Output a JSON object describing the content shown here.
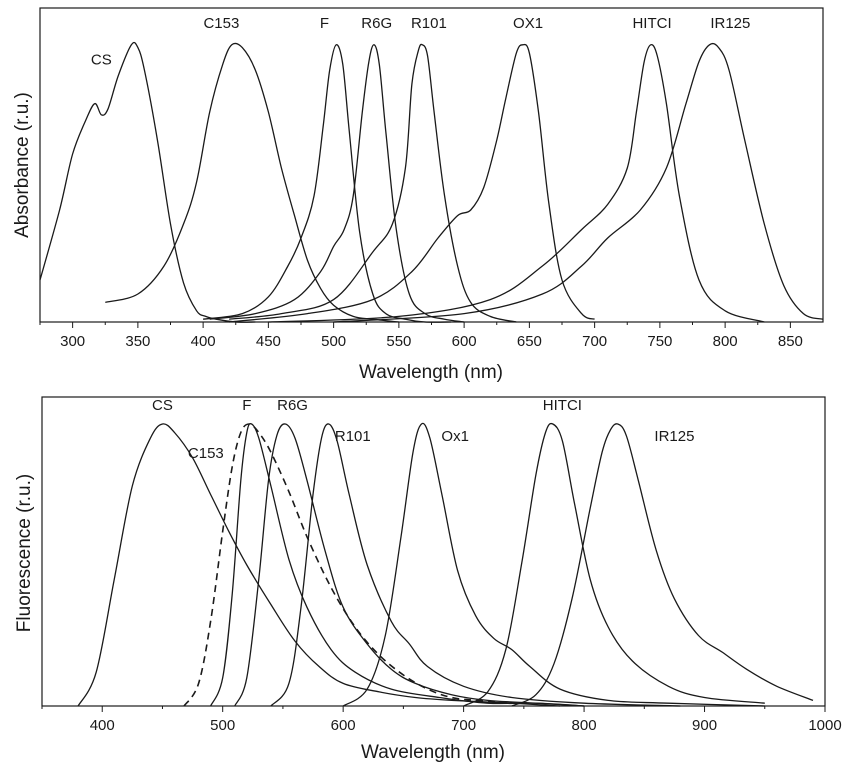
{
  "chart_data": [
    {
      "type": "line",
      "title": "",
      "xlabel": "Wavelength (nm)",
      "ylabel": "Absorbance (r.u.)",
      "xlim": [
        275,
        875
      ],
      "ylim": [
        0,
        1.0
      ],
      "xticks": [
        300,
        350,
        400,
        450,
        500,
        550,
        600,
        650,
        700,
        750,
        800,
        850
      ],
      "grid": false,
      "legend": "none",
      "series": [
        {
          "name": "CS",
          "x": [
            275,
            290,
            300,
            310,
            317,
            322,
            327,
            335,
            345,
            350,
            355,
            365,
            375,
            385,
            395,
            402,
            410,
            425,
            440
          ],
          "y": [
            0.15,
            0.4,
            0.6,
            0.72,
            0.78,
            0.74,
            0.76,
            0.88,
            0.99,
            0.98,
            0.9,
            0.65,
            0.35,
            0.14,
            0.04,
            0.02,
            0.01,
            0.0,
            0.0
          ]
        },
        {
          "name": "C153",
          "x": [
            325,
            350,
            370,
            385,
            395,
            405,
            415,
            422,
            430,
            440,
            450,
            460,
            470,
            480,
            490,
            500,
            515,
            530,
            550
          ],
          "y": [
            0.07,
            0.1,
            0.2,
            0.35,
            0.5,
            0.75,
            0.92,
            0.99,
            0.98,
            0.9,
            0.75,
            0.55,
            0.38,
            0.22,
            0.12,
            0.06,
            0.02,
            0.01,
            0.0
          ]
        },
        {
          "name": "F",
          "x": [
            400,
            430,
            450,
            465,
            475,
            485,
            492,
            497,
            502,
            507,
            512,
            520,
            530,
            540,
            555,
            570,
            590
          ],
          "y": [
            0.01,
            0.03,
            0.09,
            0.2,
            0.3,
            0.45,
            0.7,
            0.9,
            0.99,
            0.92,
            0.68,
            0.32,
            0.1,
            0.03,
            0.01,
            0.0,
            0.0
          ]
        },
        {
          "name": "R6G",
          "x": [
            405,
            440,
            470,
            490,
            500,
            508,
            515,
            522,
            527,
            531,
            535,
            540,
            548,
            558,
            570,
            585,
            600
          ],
          "y": [
            0.01,
            0.03,
            0.08,
            0.18,
            0.27,
            0.33,
            0.45,
            0.75,
            0.93,
            0.99,
            0.92,
            0.68,
            0.33,
            0.1,
            0.03,
            0.01,
            0.0
          ]
        },
        {
          "name": "R101",
          "x": [
            420,
            460,
            500,
            530,
            545,
            555,
            560,
            565,
            568,
            572,
            577,
            585,
            595,
            605,
            620,
            640
          ],
          "y": [
            0.01,
            0.03,
            0.08,
            0.25,
            0.35,
            0.55,
            0.85,
            0.97,
            0.99,
            0.95,
            0.75,
            0.45,
            0.2,
            0.07,
            0.02,
            0.0
          ]
        },
        {
          "name": "OX1",
          "x": [
            420,
            480,
            530,
            560,
            580,
            595,
            605,
            615,
            625,
            632,
            640,
            645,
            650,
            657,
            665,
            675,
            690,
            700
          ],
          "y": [
            0.0,
            0.03,
            0.08,
            0.18,
            0.3,
            0.38,
            0.4,
            0.48,
            0.65,
            0.8,
            0.96,
            0.99,
            0.96,
            0.75,
            0.42,
            0.15,
            0.03,
            0.01
          ]
        },
        {
          "name": "HITCI",
          "x": [
            450,
            550,
            620,
            660,
            690,
            710,
            725,
            732,
            738,
            743,
            748,
            755,
            765,
            780,
            800,
            830
          ],
          "y": [
            0.0,
            0.02,
            0.08,
            0.2,
            0.33,
            0.42,
            0.55,
            0.75,
            0.93,
            0.99,
            0.95,
            0.78,
            0.45,
            0.15,
            0.04,
            0.0
          ]
        },
        {
          "name": "IR125",
          "x": [
            500,
            600,
            660,
            690,
            710,
            735,
            755,
            770,
            780,
            788,
            795,
            803,
            815,
            830,
            845,
            860,
            875
          ],
          "y": [
            0.0,
            0.03,
            0.1,
            0.2,
            0.3,
            0.4,
            0.55,
            0.78,
            0.93,
            0.99,
            0.98,
            0.9,
            0.65,
            0.35,
            0.13,
            0.03,
            0.01
          ]
        }
      ],
      "annotations": [
        {
          "text": "CS",
          "x": 322,
          "y": 0.92
        },
        {
          "text": "C153",
          "x": 414,
          "y": 1.05
        },
        {
          "text": "F",
          "x": 493,
          "y": 1.05
        },
        {
          "text": "R6G",
          "x": 533,
          "y": 1.05
        },
        {
          "text": "R101",
          "x": 573,
          "y": 1.05
        },
        {
          "text": "OX1",
          "x": 649,
          "y": 1.05
        },
        {
          "text": "HITCI",
          "x": 744,
          "y": 1.05
        },
        {
          "text": "IR125",
          "x": 804,
          "y": 1.05
        }
      ]
    },
    {
      "type": "line",
      "title": "",
      "xlabel": "Wavelength (nm)",
      "ylabel": "Fluorescence (r.u.)",
      "xlim": [
        350,
        1000
      ],
      "ylim": [
        0,
        1.0
      ],
      "xticks": [
        400,
        500,
        600,
        700,
        800,
        900,
        1000
      ],
      "grid": false,
      "legend": "none",
      "series": [
        {
          "name": "CS",
          "x": [
            380,
            395,
            410,
            425,
            440,
            450,
            460,
            475,
            490,
            505,
            520,
            540,
            560,
            580,
            600,
            630,
            660,
            690,
            740,
            780
          ],
          "y": [
            0.0,
            0.12,
            0.45,
            0.78,
            0.95,
            1.0,
            0.97,
            0.88,
            0.75,
            0.62,
            0.5,
            0.36,
            0.23,
            0.14,
            0.08,
            0.05,
            0.03,
            0.02,
            0.01,
            0.0
          ]
        },
        {
          "name": "C153",
          "dashed": true,
          "x": [
            468,
            480,
            490,
            500,
            508,
            515,
            522,
            530,
            540,
            555,
            570,
            590,
            610,
            630,
            650,
            670,
            690,
            710,
            740
          ],
          "y": [
            0.0,
            0.08,
            0.3,
            0.62,
            0.85,
            0.97,
            1.0,
            0.97,
            0.9,
            0.76,
            0.6,
            0.42,
            0.28,
            0.18,
            0.11,
            0.06,
            0.03,
            0.02,
            0.01
          ]
        },
        {
          "name": "F",
          "x": [
            490,
            500,
            508,
            515,
            520,
            524,
            530,
            540,
            555,
            570,
            590,
            610,
            640,
            680,
            720,
            760,
            800
          ],
          "y": [
            0.0,
            0.1,
            0.4,
            0.8,
            0.97,
            1.0,
            0.95,
            0.78,
            0.52,
            0.35,
            0.2,
            0.12,
            0.06,
            0.03,
            0.01,
            0.01,
            0.0
          ]
        },
        {
          "name": "R6G",
          "x": [
            510,
            520,
            530,
            538,
            545,
            552,
            560,
            570,
            585,
            600,
            620,
            640,
            660,
            690,
            720,
            760,
            800
          ],
          "y": [
            0.0,
            0.1,
            0.45,
            0.8,
            0.96,
            1.0,
            0.95,
            0.8,
            0.55,
            0.35,
            0.22,
            0.13,
            0.08,
            0.04,
            0.02,
            0.01,
            0.0
          ]
        },
        {
          "name": "R101",
          "x": [
            540,
            555,
            565,
            575,
            582,
            588,
            595,
            605,
            620,
            640,
            655,
            670,
            700,
            740,
            800,
            880
          ],
          "y": [
            0.0,
            0.08,
            0.35,
            0.75,
            0.95,
            1.0,
            0.94,
            0.75,
            0.5,
            0.3,
            0.22,
            0.14,
            0.07,
            0.03,
            0.01,
            0.0
          ]
        },
        {
          "name": "Ox1",
          "x": [
            600,
            620,
            635,
            648,
            658,
            665,
            672,
            682,
            695,
            710,
            725,
            740,
            755,
            780,
            820,
            870,
            950
          ],
          "y": [
            0.0,
            0.06,
            0.25,
            0.6,
            0.9,
            1.0,
            0.95,
            0.75,
            0.48,
            0.32,
            0.24,
            0.2,
            0.14,
            0.06,
            0.02,
            0.01,
            0.0
          ]
        },
        {
          "name": "HITCI",
          "x": [
            700,
            720,
            735,
            748,
            760,
            768,
            774,
            782,
            792,
            805,
            820,
            840,
            870,
            900,
            950
          ],
          "y": [
            0.0,
            0.05,
            0.2,
            0.5,
            0.82,
            0.97,
            1.0,
            0.94,
            0.72,
            0.45,
            0.28,
            0.16,
            0.07,
            0.03,
            0.01
          ]
        },
        {
          "name": "IR125",
          "x": [
            740,
            760,
            775,
            790,
            805,
            815,
            822,
            828,
            835,
            845,
            860,
            875,
            895,
            915,
            935,
            960,
            990
          ],
          "y": [
            0.0,
            0.04,
            0.15,
            0.38,
            0.7,
            0.9,
            0.98,
            1.0,
            0.96,
            0.8,
            0.55,
            0.38,
            0.25,
            0.19,
            0.13,
            0.07,
            0.02
          ]
        }
      ],
      "annotations": [
        {
          "text": "CS",
          "x": 450,
          "y": 1.05
        },
        {
          "text": "C153",
          "x": 486,
          "y": 0.88
        },
        {
          "text": "F",
          "x": 520,
          "y": 1.05
        },
        {
          "text": "R6G",
          "x": 558,
          "y": 1.05
        },
        {
          "text": "R101",
          "x": 608,
          "y": 0.94
        },
        {
          "text": "Ox1",
          "x": 693,
          "y": 0.94
        },
        {
          "text": "HITCI",
          "x": 782,
          "y": 1.05
        },
        {
          "text": "IR125",
          "x": 875,
          "y": 0.94
        }
      ]
    }
  ]
}
